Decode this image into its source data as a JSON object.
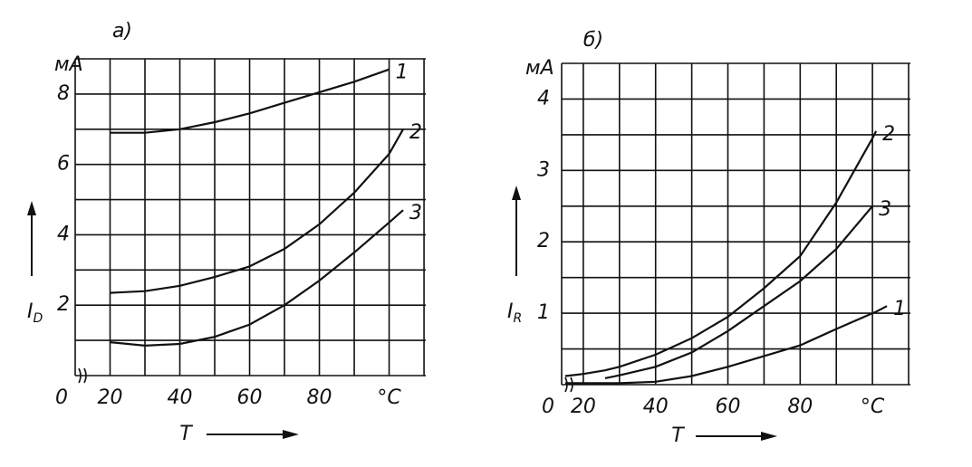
{
  "chart_data": [
    {
      "type": "line",
      "title": "a)",
      "y_unit": "мА",
      "ylabel": "I",
      "ylabel_subscript": "D",
      "xlabel": "T",
      "origin_label": "0",
      "x": [
        20,
        30,
        40,
        50,
        60,
        70,
        80,
        90,
        100,
        104
      ],
      "series": [
        {
          "name": "1",
          "color": "#111111",
          "values": [
            6.9,
            6.9,
            7.0,
            7.2,
            7.45,
            7.75,
            8.05,
            8.35,
            8.7,
            null
          ]
        },
        {
          "name": "2",
          "color": "#111111",
          "values": [
            2.35,
            2.4,
            2.55,
            2.8,
            3.1,
            3.6,
            4.3,
            5.2,
            6.3,
            7.0
          ]
        },
        {
          "name": "3",
          "color": "#111111",
          "values": [
            0.95,
            0.85,
            0.9,
            1.1,
            1.45,
            2.0,
            2.7,
            3.5,
            4.35,
            4.7
          ]
        }
      ],
      "xlim": [
        10,
        110.5
      ],
      "ylim": [
        0,
        9
      ],
      "xticks": [
        20,
        40,
        60,
        80,
        {
          "value": 100,
          "label": "°C"
        }
      ],
      "minor_xticks": [
        30,
        50,
        70,
        90,
        110
      ],
      "yticks": [
        2,
        4,
        6,
        8
      ],
      "minor_yticks": [
        1,
        3,
        5,
        7,
        9
      ],
      "grid": true
    },
    {
      "type": "line",
      "title": "б)",
      "y_unit": "мА",
      "ylabel": "I",
      "ylabel_subscript": "R",
      "xlabel": "T",
      "origin_label": "0",
      "x": [
        15,
        20,
        26,
        30,
        40,
        50,
        60,
        70,
        80,
        90,
        100,
        101,
        104
      ],
      "series": [
        {
          "name": "1",
          "color": "#111111",
          "values": [
            0.02,
            0.02,
            0.02,
            0.02,
            0.04,
            0.12,
            0.25,
            0.4,
            0.55,
            0.78,
            1.0,
            1.02,
            1.1
          ]
        },
        {
          "name": "2",
          "color": "#111111",
          "values": [
            0.12,
            0.15,
            0.2,
            0.25,
            0.42,
            0.65,
            0.95,
            1.35,
            1.8,
            2.55,
            3.45,
            3.55,
            null
          ]
        },
        {
          "name": "3",
          "color": "#111111",
          "values": [
            null,
            null,
            0.09,
            0.13,
            0.25,
            0.45,
            0.75,
            1.1,
            1.45,
            1.9,
            2.5,
            null,
            null
          ]
        }
      ],
      "xlim": [
        14,
        110.5
      ],
      "ylim": [
        0,
        4.5
      ],
      "xticks": [
        20,
        40,
        60,
        80,
        {
          "value": 100,
          "label": "°C"
        }
      ],
      "minor_xticks": [
        30,
        50,
        70,
        90,
        110
      ],
      "yticks": [
        1,
        2,
        3,
        4
      ],
      "minor_yticks": [
        0.5,
        1.5,
        2.5,
        3.5,
        4.5
      ],
      "grid": true
    }
  ]
}
